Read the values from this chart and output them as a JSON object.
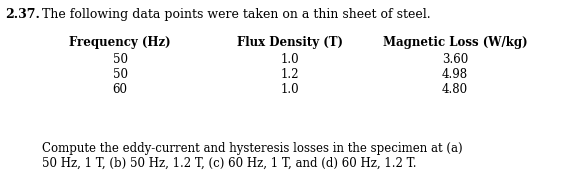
{
  "problem_number": "2.37.",
  "intro_text": "The following data points were taken on a thin sheet of steel.",
  "col1_header": "Frequency (Hz)",
  "col2_header": "Flux Density (T)",
  "col3_header": "Magnetic Loss (W/kg)",
  "col1_data": [
    "50",
    "50",
    "60"
  ],
  "col2_data": [
    "1.0",
    "1.2",
    "1.0"
  ],
  "col3_data": [
    "3.60",
    "4.98",
    "4.80"
  ],
  "footer_line1": "Compute the eddy-current and hysteresis losses in the specimen at (a)",
  "footer_line2": "50 Hz, 1 T, (b) 50 Hz, 1.2 T, (c) 60 Hz, 1 T, and (d) 60 Hz, 1.2 T.",
  "bg_color": "#ffffff",
  "text_color": "#000000",
  "font_size_body": 8.5,
  "font_size_header": 8.5,
  "font_size_problem": 9.0
}
